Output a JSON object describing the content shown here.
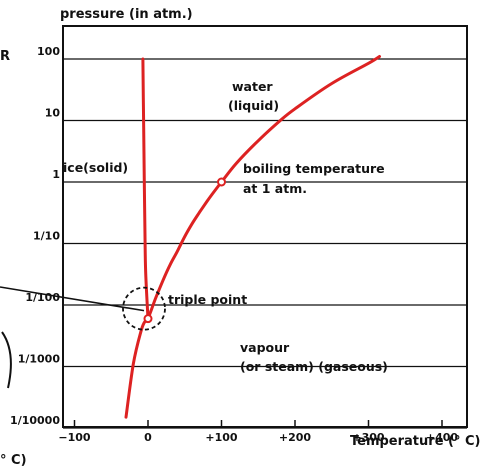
{
  "y_axis": {
    "label": "pressure (in atm.)",
    "ticks": [
      {
        "value": 100,
        "label": "100"
      },
      {
        "value": 10,
        "label": "10"
      },
      {
        "value": 1,
        "label": "1"
      },
      {
        "value": 0.1,
        "label": "1/10"
      },
      {
        "value": 0.01,
        "label": "1/100"
      },
      {
        "value": 0.001,
        "label": "1/1000"
      },
      {
        "value": 0.0001,
        "label": "1/10000"
      }
    ]
  },
  "x_axis": {
    "label": "Temperature (° C)",
    "ticks": [
      {
        "value": -100,
        "label": "−100"
      },
      {
        "value": 0,
        "label": "0"
      },
      {
        "value": 100,
        "label": "+100"
      },
      {
        "value": 200,
        "label": "+200"
      },
      {
        "value": 300,
        "label": "+300"
      },
      {
        "value": 400,
        "label": "+400"
      }
    ]
  },
  "regions": {
    "water_line1": "water",
    "water_line2": "(liquid)",
    "ice": "ice(solid)",
    "vapour_line1": "vapour",
    "vapour_line2": "(or steam) (gaseous)"
  },
  "annotations": {
    "boiling_line1": "boiling temperature",
    "boiling_line2": "at 1 atm.",
    "triple_point": "triple point"
  },
  "edge_fragments": {
    "top_left": "R",
    "bottom_left": "° C)"
  },
  "colors": {
    "curve": "#dd2222",
    "ink": "#111111"
  },
  "chart_data": {
    "type": "line",
    "y_scale": "log",
    "xlim": [
      -100,
      400
    ],
    "ylim": [
      0.0001,
      100
    ],
    "grid": true,
    "series": [
      {
        "points": [
          [
            -30,
            0.00015
          ],
          [
            -20,
            0.0011
          ],
          [
            -10,
            0.0036
          ],
          [
            -5,
            0.0052
          ],
          [
            0,
            0.006
          ],
          [
            10,
            0.0125
          ],
          [
            20,
            0.0245
          ],
          [
            30,
            0.045
          ],
          [
            40,
            0.075
          ],
          [
            50,
            0.13
          ],
          [
            60,
            0.21
          ],
          [
            70,
            0.32
          ],
          [
            80,
            0.48
          ],
          [
            90,
            0.7
          ],
          [
            100,
            1
          ],
          [
            120,
            2
          ],
          [
            150,
            4.7
          ],
          [
            180,
            10
          ],
          [
            200,
            15.5
          ],
          [
            250,
            40
          ],
          [
            300,
            85
          ],
          [
            315,
            110
          ]
        ]
      },
      {
        "points": [
          [
            -7,
            100
          ],
          [
            -6,
            10
          ],
          [
            -5,
            1
          ],
          [
            -4,
            0.1
          ],
          [
            -3,
            0.03
          ],
          [
            0,
            0.006
          ]
        ]
      }
    ],
    "markers": [
      {
        "x": 0,
        "y": 0.006
      },
      {
        "x": 100,
        "y": 1
      }
    ]
  }
}
